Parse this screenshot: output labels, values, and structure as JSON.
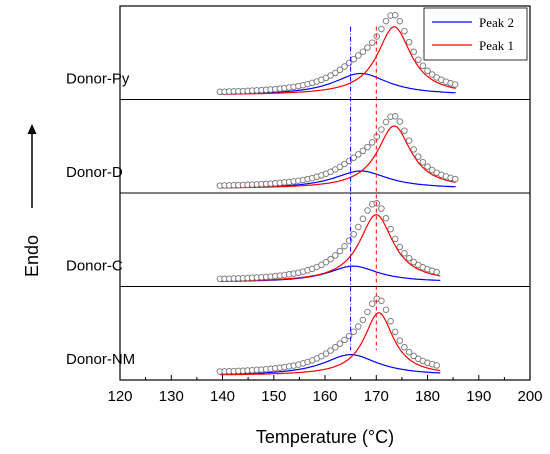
{
  "chart_data": {
    "type": "line",
    "xlabel": "Temperature (°C)",
    "ylabel": "Endo",
    "xlim": [
      120,
      200
    ],
    "xticks": [
      120,
      130,
      140,
      150,
      160,
      170,
      180,
      190,
      200
    ],
    "reference_lines": [
      {
        "x": 165,
        "color": "#0000ff",
        "style": "dash-dot"
      },
      {
        "x": 170,
        "color": "#ff0000",
        "style": "dash"
      }
    ],
    "legend": {
      "position": "top-right",
      "entries": [
        {
          "name": "Peak 2",
          "color": "#0000ff"
        },
        {
          "name": "Peak 1",
          "color": "#ff0000"
        }
      ]
    },
    "panels": [
      {
        "label": "Donor-Py",
        "range": [
          139.5,
          185.5
        ],
        "peak1": {
          "center": 173.5,
          "height": 0.85,
          "width": 4.0
        },
        "peak2": {
          "center": 167.0,
          "height": 0.27,
          "width": 6.5
        },
        "baseline": 0.02
      },
      {
        "label": "Donor-D",
        "range": [
          139.5,
          185.5
        ],
        "peak1": {
          "center": 173.5,
          "height": 0.78,
          "width": 4.0
        },
        "peak2": {
          "center": 167.0,
          "height": 0.22,
          "width": 6.5
        },
        "baseline": 0.02
      },
      {
        "label": "Donor-C",
        "range": [
          139.5,
          182.5
        ],
        "peak1": {
          "center": 170.0,
          "height": 0.84,
          "width": 4.0
        },
        "peak2": {
          "center": 165.5,
          "height": 0.2,
          "width": 6.0
        },
        "baseline": 0.02
      },
      {
        "label": "Donor-NM",
        "range": [
          139.5,
          182.5
        ],
        "peak1": {
          "center": 170.5,
          "height": 0.78,
          "width": 3.5
        },
        "peak2": {
          "center": 165.0,
          "height": 0.26,
          "width": 6.5
        },
        "baseline": 0.03
      }
    ]
  },
  "colors": {
    "peak1": "#ff0000",
    "peak2": "#0000ff",
    "points": "#777777"
  },
  "icons": {
    "y_arrow": "up-arrow-icon"
  }
}
